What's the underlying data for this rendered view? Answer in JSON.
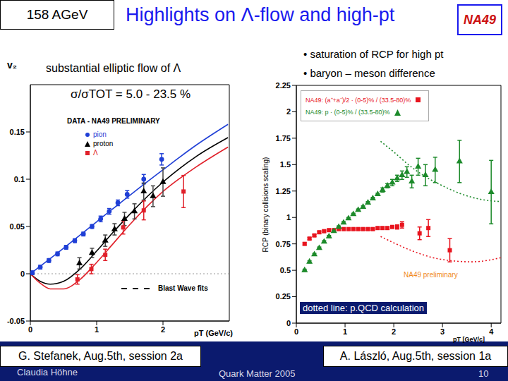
{
  "header": {
    "energy": "158 AGeV",
    "title": "Highlights on Λ-flow and high-pt",
    "logo": "NA49"
  },
  "bullets": [
    "• saturation of RCP for high pt",
    "• baryon – meson difference"
  ],
  "footer": {
    "left_box": "G. Stefanek, Aug.5th, session 2a",
    "right_box": "A. László, Aug.5th, session 1a",
    "author": "Claudia Höhne",
    "conference": "Quark Matter 2005",
    "page": "10"
  },
  "chart_data": [
    {
      "type": "scatter",
      "title": "substantial elliptic flow of Λ",
      "subtitle": "σ/σTOT = 5.0 - 23.5 %",
      "annotation": "DATA - NA49 PRELIMINARY",
      "fit_legend": "Blast Wave fits",
      "x_label": "pT (GeV/c)",
      "y_label": "v₂",
      "xlim": [
        0,
        3
      ],
      "xticks": [
        0,
        1,
        2
      ],
      "ylim": [
        -0.05,
        0.2
      ],
      "yticks": [
        -0.05,
        0,
        0.05,
        0.1,
        0.15
      ],
      "reference_y": 0,
      "series": [
        {
          "name": "pion",
          "color": "#1f3fd6",
          "marker": "circle",
          "x": [
            0.03,
            0.15,
            0.28,
            0.41,
            0.54,
            0.67,
            0.8,
            0.93,
            1.06,
            1.19,
            1.32,
            1.46,
            1.71,
            1.98
          ],
          "values": [
            0.001,
            0.007,
            0.014,
            0.021,
            0.028,
            0.035,
            0.042,
            0.05,
            0.058,
            0.066,
            0.075,
            0.084,
            0.1,
            0.121
          ],
          "errors": [
            0.002,
            0.002,
            0.002,
            0.002,
            0.002,
            0.002,
            0.002,
            0.002,
            0.003,
            0.003,
            0.003,
            0.004,
            0.005,
            0.006
          ]
        },
        {
          "name": "proton",
          "color": "#000000",
          "marker": "triangle",
          "x": [
            0.74,
            0.93,
            1.13,
            1.27,
            1.42,
            1.57,
            1.71,
            1.85,
            2.0
          ],
          "values": [
            0.011,
            0.022,
            0.035,
            0.047,
            0.058,
            0.066,
            0.087,
            0.082,
            0.097
          ],
          "errors": [
            0.006,
            0.005,
            0.006,
            0.006,
            0.007,
            0.008,
            0.009,
            0.011,
            0.015
          ]
        },
        {
          "name": "Λ",
          "color": "#e0202a",
          "marker": "square",
          "x": [
            0.71,
            0.92,
            1.13,
            1.4,
            1.71,
            2.31
          ],
          "values": [
            -0.006,
            0.005,
            0.02,
            0.049,
            0.067,
            0.087
          ],
          "errors": [
            0.005,
            0.005,
            0.006,
            0.007,
            0.01,
            0.017
          ]
        },
        {
          "type": "line",
          "line_style": "solid",
          "color": "#1f3fd6",
          "x": [
            0,
            0.5,
            1,
            1.5,
            2,
            2.5,
            2.98
          ],
          "values": [
            0,
            0.027,
            0.055,
            0.083,
            0.11,
            0.136,
            0.158
          ]
        },
        {
          "type": "line",
          "line_style": "solid",
          "color": "#000000",
          "x": [
            0,
            0.15,
            0.3,
            0.5,
            0.75,
            1,
            1.25,
            1.5,
            2,
            2.5,
            2.98
          ],
          "values": [
            0,
            -0.008,
            -0.011,
            -0.008,
            0.005,
            0.024,
            0.044,
            0.063,
            0.097,
            0.124,
            0.144
          ]
        },
        {
          "type": "line",
          "line_style": "solid",
          "color": "#e0202a",
          "x": [
            0,
            0.15,
            0.3,
            0.5,
            0.75,
            1,
            1.25,
            1.5,
            2,
            2.5,
            2.98
          ],
          "values": [
            0,
            -0.01,
            -0.016,
            -0.016,
            -0.006,
            0.012,
            0.032,
            0.052,
            0.087,
            0.113,
            0.134
          ]
        }
      ]
    },
    {
      "type": "scatter",
      "annotation": "NA49 preliminary",
      "note": "dotted line: p.QCD calculation",
      "x_label": "pT [GeV/c]",
      "y_label": "RCP (binary collisions scaling)",
      "xlim": [
        0,
        4.2
      ],
      "xticks": [
        0,
        1,
        2,
        3,
        4
      ],
      "ylim": [
        0,
        2.25
      ],
      "yticks": [
        0,
        0.25,
        0.5,
        0.75,
        1,
        1.25,
        1.5,
        1.75,
        2,
        2.25
      ],
      "series": [
        {
          "name": "NA49: (a⁺+a⁻)/2 · (0-5)% / (33.5-80)%",
          "color": "#e8141e",
          "marker": "square",
          "x": [
            0.17,
            0.27,
            0.37,
            0.47,
            0.57,
            0.67,
            0.77,
            0.87,
            0.97,
            1.07,
            1.17,
            1.27,
            1.37,
            1.47,
            1.57,
            1.67,
            1.77,
            1.87,
            1.97,
            2.07,
            2.17,
            2.53,
            2.71,
            3.15
          ],
          "values": [
            0.75,
            0.8,
            0.83,
            0.86,
            0.87,
            0.88,
            0.88,
            0.89,
            0.89,
            0.89,
            0.89,
            0.89,
            0.89,
            0.89,
            0.89,
            0.9,
            0.9,
            0.9,
            0.91,
            0.91,
            0.93,
            0.85,
            0.9,
            0.69
          ],
          "errors": [
            0.01,
            0.01,
            0.01,
            0.01,
            0.01,
            0.01,
            0.01,
            0.01,
            0.01,
            0.01,
            0.01,
            0.01,
            0.01,
            0.01,
            0.01,
            0.01,
            0.01,
            0.01,
            0.01,
            0.02,
            0.03,
            0.06,
            0.08,
            0.11
          ]
        },
        {
          "name": "NA49: p · (0-5)% / (33.5-80)%",
          "color": "#1c8a2a",
          "marker": "triangle",
          "x": [
            0.17,
            0.27,
            0.37,
            0.47,
            0.57,
            0.67,
            0.77,
            0.87,
            0.97,
            1.07,
            1.17,
            1.27,
            1.37,
            1.47,
            1.57,
            1.67,
            1.77,
            1.87,
            1.97,
            2.07,
            2.17,
            2.27,
            2.37,
            2.5,
            2.65,
            2.85,
            3.35,
            4.0
          ],
          "values": [
            0.5,
            0.58,
            0.65,
            0.71,
            0.77,
            0.82,
            0.87,
            0.91,
            0.95,
            0.99,
            1.03,
            1.07,
            1.1,
            1.14,
            1.18,
            1.22,
            1.26,
            1.3,
            1.33,
            1.37,
            1.4,
            1.43,
            1.34,
            1.48,
            1.4,
            1.45,
            1.53,
            1.24
          ],
          "errors": [
            0.01,
            0.01,
            0.01,
            0.01,
            0.01,
            0.01,
            0.01,
            0.01,
            0.01,
            0.01,
            0.01,
            0.01,
            0.01,
            0.01,
            0.01,
            0.01,
            0.02,
            0.02,
            0.03,
            0.03,
            0.04,
            0.05,
            0.06,
            0.08,
            0.1,
            0.12,
            0.2,
            0.3
          ]
        },
        {
          "type": "line",
          "line_style": "dotted",
          "color": "#1c8a2a",
          "x": [
            1.73,
            2.0,
            2.3,
            2.6,
            3.0,
            3.4,
            3.8,
            4.2
          ],
          "values": [
            1.72,
            1.62,
            1.5,
            1.4,
            1.3,
            1.22,
            1.17,
            1.15
          ]
        },
        {
          "type": "line",
          "line_style": "dotted",
          "color": "#e8141e",
          "x": [
            1.73,
            2.0,
            2.4,
            2.8,
            3.2,
            3.6,
            4.0,
            4.2
          ],
          "values": [
            0.82,
            0.76,
            0.68,
            0.62,
            0.59,
            0.58,
            0.6,
            0.62
          ]
        }
      ]
    }
  ]
}
